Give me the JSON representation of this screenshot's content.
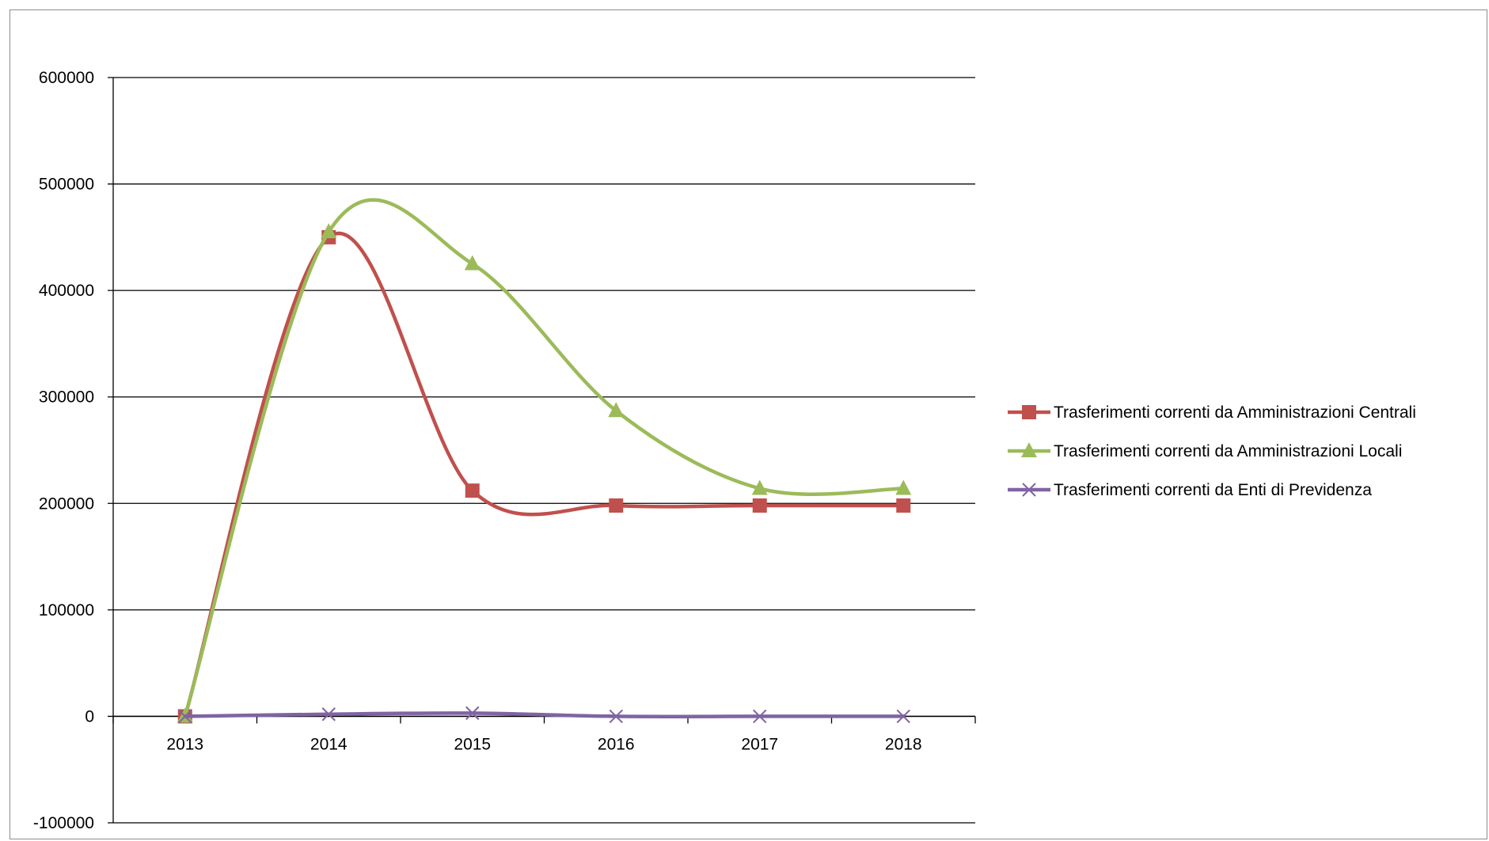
{
  "chart_data": {
    "type": "line",
    "title": "",
    "xlabel": "",
    "ylabel": "",
    "categories": [
      "2013",
      "2014",
      "2015",
      "2016",
      "2017",
      "2018"
    ],
    "ylim": [
      -100000,
      600000
    ],
    "yticks": [
      -100000,
      0,
      100000,
      200000,
      300000,
      400000,
      500000,
      600000
    ],
    "ytick_labels": [
      "-100000",
      "0",
      "100000",
      "200000",
      "300000",
      "400000",
      "500000",
      "600000"
    ],
    "grid": true,
    "smooth": true,
    "legend_position": "right",
    "series": [
      {
        "name": "Trasferimenti correnti da Amministrazioni Centrali",
        "color": "#c0504d",
        "marker": "square",
        "values": [
          0,
          450000,
          212000,
          198000,
          198000,
          198000
        ]
      },
      {
        "name": "Trasferimenti correnti da Amministrazioni Locali",
        "color": "#9bbb59",
        "marker": "triangle",
        "values": [
          0,
          455000,
          425000,
          287000,
          214000,
          214000
        ]
      },
      {
        "name": "Trasferimenti correnti da Enti di Previdenza",
        "color": "#8064a2",
        "marker": "x",
        "values": [
          0,
          2000,
          3000,
          0,
          0,
          0
        ]
      }
    ]
  }
}
